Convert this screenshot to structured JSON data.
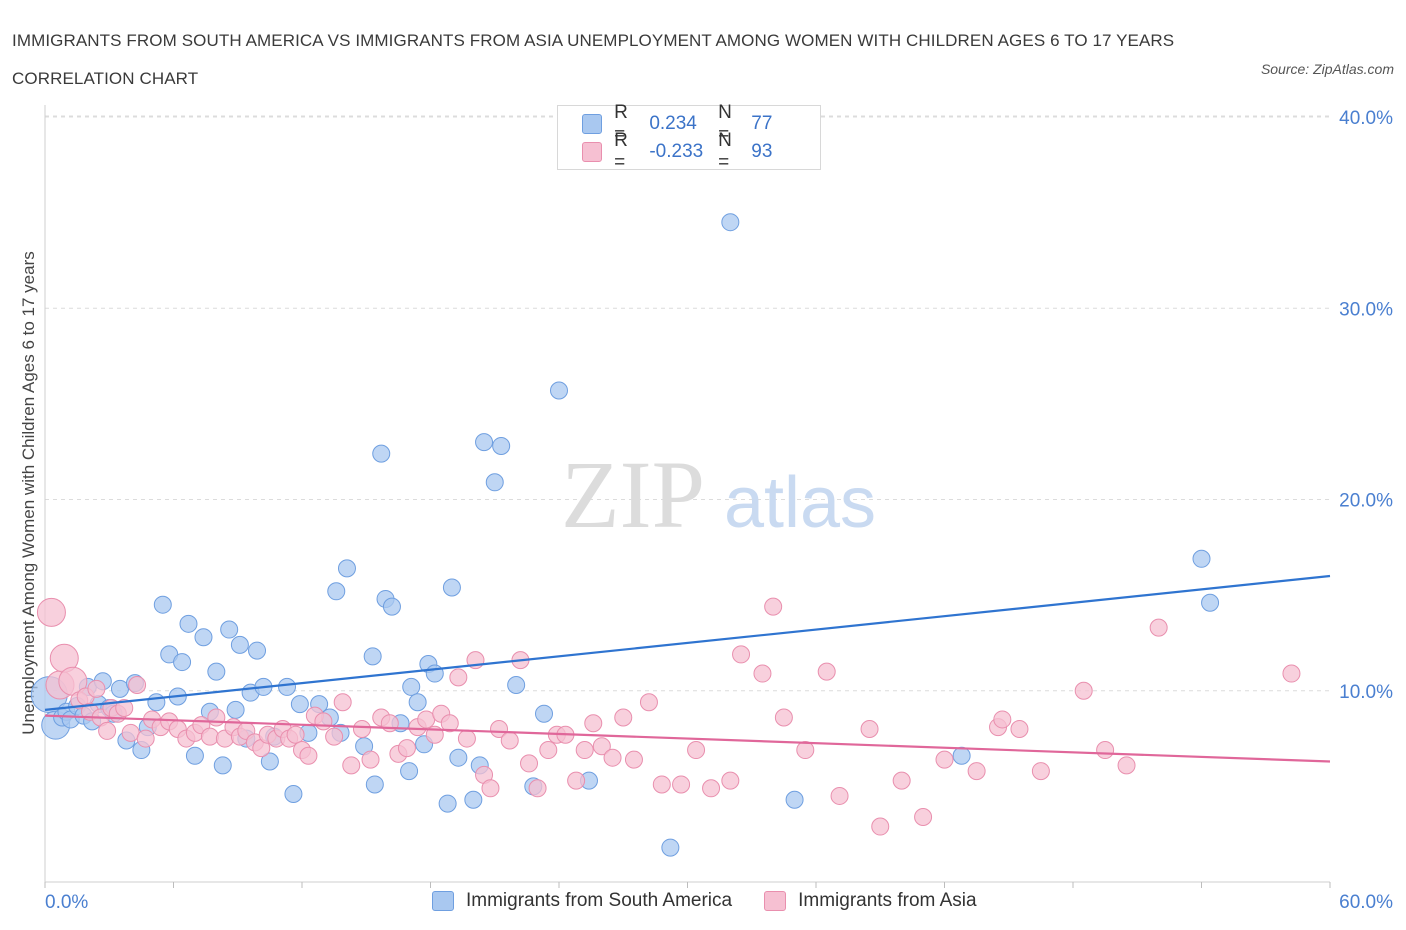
{
  "title": "IMMIGRANTS FROM SOUTH AMERICA VS IMMIGRANTS FROM ASIA UNEMPLOYMENT AMONG WOMEN WITH CHILDREN AGES 6 TO 17 YEARS CORRELATION CHART",
  "source": "Source: ZipAtlas.com",
  "watermark": {
    "zip": "ZIP",
    "atlas": "atlas"
  },
  "legend": {
    "r_label": "R =",
    "n_label": "N =",
    "rows": [
      {
        "r": "0.234",
        "n": "77"
      },
      {
        "r": "-0.233",
        "n": "93"
      }
    ]
  },
  "colors": {
    "blue_fill": "#a9c8f0",
    "blue_stroke": "#6f9fe0",
    "blue_line": "#2f74d0",
    "pink_fill": "#f6c0d2",
    "pink_stroke": "#e98fae",
    "pink_line": "#e0679a",
    "axis_text": "#4a7fd0",
    "grid": "#dcdcdc"
  },
  "chart_data": {
    "type": "scatter",
    "title": "IMMIGRANTS FROM SOUTH AMERICA VS IMMIGRANTS FROM ASIA UNEMPLOYMENT AMONG WOMEN WITH CHILDREN AGES 6 TO 17 YEARS CORRELATION CHART",
    "xlabel": "",
    "ylabel": "Unemployment Among Women with Children Ages 6 to 17 years",
    "xlim": [
      0,
      60
    ],
    "ylim": [
      0,
      40
    ],
    "x_tick_labels": [
      "0.0%",
      "60.0%"
    ],
    "y_ticks": [
      10,
      20,
      30,
      40
    ],
    "y_tick_labels": [
      "10.0%",
      "20.0%",
      "30.0%",
      "40.0%"
    ],
    "grid": true,
    "legend_position": "top-center",
    "series": [
      {
        "name": "Immigrants from South America",
        "color": "#a9c8f0",
        "trend": {
          "x": [
            0,
            60
          ],
          "y": [
            9.0,
            16.0
          ]
        },
        "points": [
          [
            0.2,
            9.8,
            3
          ],
          [
            0.5,
            8.2,
            2
          ],
          [
            0.8,
            8.6,
            1
          ],
          [
            1.0,
            8.9,
            1
          ],
          [
            1.2,
            8.5,
            1
          ],
          [
            1.5,
            9.2,
            1
          ],
          [
            1.8,
            8.7,
            1
          ],
          [
            2.0,
            10.2,
            1
          ],
          [
            2.2,
            8.4,
            1
          ],
          [
            2.5,
            9.3,
            1
          ],
          [
            2.7,
            10.5,
            1
          ],
          [
            3.0,
            9.1,
            1
          ],
          [
            3.2,
            8.8,
            1
          ],
          [
            3.5,
            10.1,
            1
          ],
          [
            3.8,
            7.4,
            1
          ],
          [
            4.2,
            10.4,
            1
          ],
          [
            4.5,
            6.9,
            1
          ],
          [
            4.8,
            8.1,
            1
          ],
          [
            5.2,
            9.4,
            1
          ],
          [
            5.5,
            14.5,
            1
          ],
          [
            5.8,
            11.9,
            1
          ],
          [
            6.2,
            9.7,
            1
          ],
          [
            6.4,
            11.5,
            1
          ],
          [
            6.7,
            13.5,
            1
          ],
          [
            7.0,
            6.6,
            1
          ],
          [
            7.4,
            12.8,
            1
          ],
          [
            7.7,
            8.9,
            1
          ],
          [
            8.0,
            11.0,
            1
          ],
          [
            8.3,
            6.1,
            1
          ],
          [
            8.6,
            13.2,
            1
          ],
          [
            8.9,
            9.0,
            1
          ],
          [
            9.1,
            12.4,
            1
          ],
          [
            9.4,
            7.5,
            1
          ],
          [
            9.6,
            9.9,
            1
          ],
          [
            9.9,
            12.1,
            1
          ],
          [
            10.2,
            10.2,
            1
          ],
          [
            10.5,
            6.3,
            1
          ],
          [
            10.7,
            7.6,
            1
          ],
          [
            11.3,
            10.2,
            1
          ],
          [
            11.6,
            4.6,
            1
          ],
          [
            11.9,
            9.3,
            1
          ],
          [
            12.3,
            7.8,
            1
          ],
          [
            12.8,
            9.3,
            1
          ],
          [
            13.3,
            8.6,
            1
          ],
          [
            13.6,
            15.2,
            1
          ],
          [
            13.8,
            7.8,
            1
          ],
          [
            14.1,
            16.4,
            1
          ],
          [
            14.9,
            7.1,
            1
          ],
          [
            15.3,
            11.8,
            1
          ],
          [
            15.4,
            5.1,
            1
          ],
          [
            15.7,
            22.4,
            1
          ],
          [
            15.9,
            14.8,
            1
          ],
          [
            16.2,
            14.4,
            1
          ],
          [
            16.6,
            8.3,
            1
          ],
          [
            17.0,
            5.8,
            1
          ],
          [
            17.1,
            10.2,
            1
          ],
          [
            17.4,
            9.4,
            1
          ],
          [
            17.7,
            7.2,
            1
          ],
          [
            17.9,
            11.4,
            1
          ],
          [
            18.2,
            10.9,
            1
          ],
          [
            18.8,
            4.1,
            1
          ],
          [
            19.0,
            15.4,
            1
          ],
          [
            19.3,
            6.5,
            1
          ],
          [
            20.0,
            4.3,
            1
          ],
          [
            20.3,
            6.1,
            1
          ],
          [
            20.5,
            23.0,
            1
          ],
          [
            21.0,
            20.9,
            1
          ],
          [
            21.3,
            22.8,
            1
          ],
          [
            22.0,
            10.3,
            1
          ],
          [
            22.8,
            5.0,
            1
          ],
          [
            23.3,
            8.8,
            1
          ],
          [
            24.0,
            25.7,
            1
          ],
          [
            25.4,
            5.3,
            1
          ],
          [
            29.2,
            1.8,
            1
          ],
          [
            32.0,
            34.5,
            1
          ],
          [
            35.0,
            4.3,
            1
          ],
          [
            42.8,
            6.6,
            1
          ],
          [
            54.0,
            16.9,
            1
          ],
          [
            54.4,
            14.6,
            1
          ]
        ]
      },
      {
        "name": "Immigrants from Asia",
        "color": "#f6c0d2",
        "trend": {
          "x": [
            0,
            60
          ],
          "y": [
            8.7,
            6.3
          ]
        },
        "points": [
          [
            0.3,
            14.1,
            2
          ],
          [
            0.7,
            10.3,
            2
          ],
          [
            0.9,
            11.7,
            2
          ],
          [
            1.3,
            10.5,
            2
          ],
          [
            1.6,
            9.5,
            1
          ],
          [
            1.9,
            9.7,
            1
          ],
          [
            2.1,
            8.9,
            1
          ],
          [
            2.4,
            10.1,
            1
          ],
          [
            2.6,
            8.6,
            1
          ],
          [
            2.9,
            7.9,
            1
          ],
          [
            3.1,
            9.1,
            1
          ],
          [
            3.4,
            8.8,
            1
          ],
          [
            3.7,
            9.1,
            1
          ],
          [
            4.0,
            7.8,
            1
          ],
          [
            4.3,
            10.3,
            1
          ],
          [
            4.7,
            7.5,
            1
          ],
          [
            5.0,
            8.5,
            1
          ],
          [
            5.4,
            8.1,
            1
          ],
          [
            5.8,
            8.4,
            1
          ],
          [
            6.2,
            8.0,
            1
          ],
          [
            6.6,
            7.5,
            1
          ],
          [
            7.0,
            7.8,
            1
          ],
          [
            7.3,
            8.2,
            1
          ],
          [
            7.7,
            7.6,
            1
          ],
          [
            8.0,
            8.6,
            1
          ],
          [
            8.4,
            7.5,
            1
          ],
          [
            8.8,
            8.1,
            1
          ],
          [
            9.1,
            7.6,
            1
          ],
          [
            9.4,
            7.9,
            1
          ],
          [
            9.8,
            7.3,
            1
          ],
          [
            10.1,
            7.0,
            1
          ],
          [
            10.4,
            7.7,
            1
          ],
          [
            10.8,
            7.5,
            1
          ],
          [
            11.1,
            8.0,
            1
          ],
          [
            11.4,
            7.5,
            1
          ],
          [
            11.7,
            7.7,
            1
          ],
          [
            12.0,
            6.9,
            1
          ],
          [
            12.3,
            6.6,
            1
          ],
          [
            12.6,
            8.7,
            1
          ],
          [
            13.0,
            8.4,
            1
          ],
          [
            13.5,
            7.6,
            1
          ],
          [
            13.9,
            9.4,
            1
          ],
          [
            14.3,
            6.1,
            1
          ],
          [
            14.8,
            8.0,
            1
          ],
          [
            15.2,
            6.4,
            1
          ],
          [
            15.7,
            8.6,
            1
          ],
          [
            16.1,
            8.3,
            1
          ],
          [
            16.5,
            6.7,
            1
          ],
          [
            16.9,
            7.0,
            1
          ],
          [
            17.4,
            8.1,
            1
          ],
          [
            17.8,
            8.5,
            1
          ],
          [
            18.2,
            7.7,
            1
          ],
          [
            18.5,
            8.8,
            1
          ],
          [
            18.9,
            8.3,
            1
          ],
          [
            19.3,
            10.7,
            1
          ],
          [
            19.7,
            7.5,
            1
          ],
          [
            20.1,
            11.6,
            1
          ],
          [
            20.5,
            5.6,
            1
          ],
          [
            20.8,
            4.9,
            1
          ],
          [
            21.2,
            8.0,
            1
          ],
          [
            21.7,
            7.4,
            1
          ],
          [
            22.2,
            11.6,
            1
          ],
          [
            22.6,
            6.2,
            1
          ],
          [
            23.0,
            4.9,
            1
          ],
          [
            23.5,
            6.9,
            1
          ],
          [
            23.9,
            7.7,
            1
          ],
          [
            24.3,
            7.7,
            1
          ],
          [
            24.8,
            5.3,
            1
          ],
          [
            25.2,
            6.9,
            1
          ],
          [
            25.6,
            8.3,
            1
          ],
          [
            26.0,
            7.1,
            1
          ],
          [
            26.5,
            6.5,
            1
          ],
          [
            27.0,
            8.6,
            1
          ],
          [
            27.5,
            6.4,
            1
          ],
          [
            28.2,
            9.4,
            1
          ],
          [
            28.8,
            5.1,
            1
          ],
          [
            29.7,
            5.1,
            1
          ],
          [
            30.4,
            6.9,
            1
          ],
          [
            31.1,
            4.9,
            1
          ],
          [
            32.0,
            5.3,
            1
          ],
          [
            32.5,
            11.9,
            1
          ],
          [
            33.5,
            10.9,
            1
          ],
          [
            34.0,
            14.4,
            1
          ],
          [
            34.5,
            8.6,
            1
          ],
          [
            35.5,
            6.9,
            1
          ],
          [
            36.5,
            11.0,
            1
          ],
          [
            37.1,
            4.5,
            1
          ],
          [
            38.5,
            8.0,
            1
          ],
          [
            39.0,
            2.9,
            1
          ],
          [
            40.0,
            5.3,
            1
          ],
          [
            41.0,
            3.4,
            1
          ],
          [
            42.0,
            6.4,
            1
          ],
          [
            43.5,
            5.8,
            1
          ],
          [
            44.5,
            8.1,
            1
          ],
          [
            44.7,
            8.5,
            1
          ],
          [
            45.5,
            8.0,
            1
          ],
          [
            46.5,
            5.8,
            1
          ],
          [
            48.5,
            10.0,
            1
          ],
          [
            49.5,
            6.9,
            1
          ],
          [
            50.5,
            6.1,
            1
          ],
          [
            52.0,
            13.3,
            1
          ],
          [
            58.2,
            10.9,
            1
          ]
        ]
      }
    ]
  },
  "bottom_legend": [
    {
      "label": "Immigrants from South America"
    },
    {
      "label": "Immigrants from Asia"
    }
  ]
}
